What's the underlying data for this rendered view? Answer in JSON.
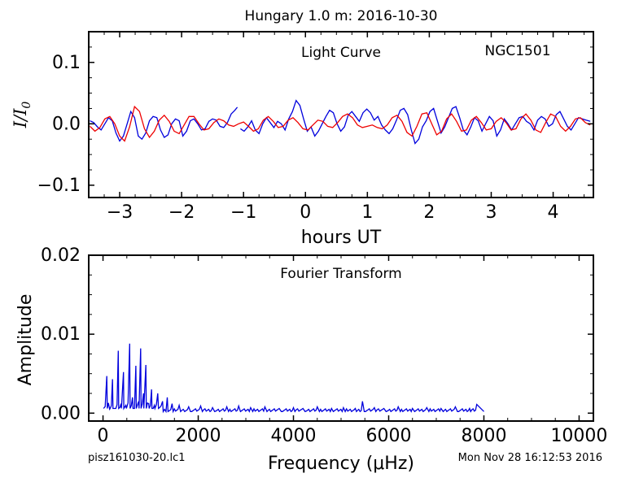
{
  "figure": {
    "suptitle": "Hungary 1.0 m:  2016-10-30",
    "footer_left": "pisz161030-20.lc1",
    "footer_right": "Mon Nov 28 16:12:53 2016"
  },
  "colors": {
    "data": "#0000dd",
    "model": "#ee0000",
    "axes": "#000000"
  },
  "chart_data": [
    {
      "type": "line",
      "panel": "light-curve",
      "title": "Light Curve",
      "annotation": "NGC1501",
      "xlabel": "hours UT",
      "ylabel": "I/I",
      "ylabel_sub": "0",
      "xlim": [
        -3.5,
        4.65
      ],
      "ylim": [
        -0.12,
        0.15
      ],
      "xticks": [
        -3,
        -2,
        -1,
        0,
        1,
        2,
        3,
        4
      ],
      "xticklabels": [
        "−3",
        "−2",
        "−1",
        "0",
        "1",
        "2",
        "3",
        "4"
      ],
      "yticks": [
        -0.1,
        0.0,
        0.1
      ],
      "yticklabels": [
        "−0.1",
        "0.0",
        "0.1"
      ],
      "grid": false,
      "series": [
        {
          "role": "data",
          "color": "#0000dd",
          "segments": [
            {
              "x": [
                -3.48,
                -3.42,
                -3.36,
                -3.3,
                -3.24,
                -3.18,
                -3.12,
                -3.06,
                -3.0,
                -2.94,
                -2.88,
                -2.82,
                -2.76,
                -2.7,
                -2.64,
                -2.58,
                -2.52,
                -2.46,
                -2.4,
                -2.34,
                -2.28,
                -2.22,
                -2.16,
                -2.1,
                -2.04,
                -1.98,
                -1.92,
                -1.86,
                -1.8,
                -1.74,
                -1.68,
                -1.62,
                -1.56,
                -1.5,
                -1.44,
                -1.38,
                -1.32,
                -1.26,
                -1.2,
                -1.14,
                -1.1
              ],
              "y": [
                0.005,
                0.002,
                -0.005,
                -0.01,
                0.0,
                0.01,
                0.005,
                -0.015,
                -0.028,
                -0.02,
                0.0,
                0.02,
                0.01,
                -0.02,
                -0.025,
                -0.015,
                0.005,
                0.012,
                0.01,
                -0.01,
                -0.022,
                -0.018,
                0.0,
                0.008,
                0.005,
                -0.02,
                -0.012,
                0.005,
                0.008,
                0.0,
                -0.01,
                -0.008,
                0.004,
                0.008,
                0.006,
                -0.004,
                -0.006,
                0.002,
                0.016,
                0.022,
                0.027
              ]
            },
            {
              "x": [
                -1.05,
                -0.99,
                -0.93,
                -0.87,
                -0.81,
                -0.75,
                -0.69,
                -0.63,
                -0.57,
                -0.51,
                -0.45,
                -0.39,
                -0.33,
                -0.27,
                -0.21,
                -0.15,
                -0.09,
                -0.03,
                0.03,
                0.09,
                0.15,
                0.21,
                0.27,
                0.33,
                0.39,
                0.45,
                0.51,
                0.57,
                0.63,
                0.69,
                0.75,
                0.81,
                0.87,
                0.93,
                0.99,
                1.05,
                1.11,
                1.17,
                1.23,
                1.29,
                1.35,
                1.41,
                1.47,
                1.53,
                1.59,
                1.65,
                1.71,
                1.77,
                1.83,
                1.89,
                1.95,
                2.01,
                2.07,
                2.13,
                2.19,
                2.25,
                2.31,
                2.37,
                2.43,
                2.49,
                2.55,
                2.61,
                2.67,
                2.73,
                2.79,
                2.85,
                2.91,
                2.97,
                3.03,
                3.09,
                3.15,
                3.21,
                3.27,
                3.33,
                3.39,
                3.45,
                3.51,
                3.57,
                3.63,
                3.69,
                3.75,
                3.81,
                3.87,
                3.93,
                3.99,
                4.05,
                4.11,
                4.17,
                4.23,
                4.29,
                4.35,
                4.41,
                4.47,
                4.53,
                4.6
              ],
              "y": [
                -0.008,
                -0.012,
                -0.005,
                0.005,
                -0.01,
                -0.016,
                0.0,
                0.01,
                0.002,
                -0.006,
                0.004,
                0.0,
                -0.01,
                0.008,
                0.02,
                0.038,
                0.03,
                0.008,
                -0.012,
                -0.005,
                -0.02,
                -0.012,
                0.0,
                0.012,
                0.022,
                0.018,
                0.0,
                -0.012,
                -0.005,
                0.014,
                0.02,
                0.012,
                0.004,
                0.018,
                0.024,
                0.018,
                0.006,
                0.012,
                -0.002,
                -0.01,
                -0.016,
                -0.008,
                0.006,
                0.022,
                0.025,
                0.015,
                -0.01,
                -0.032,
                -0.025,
                -0.005,
                0.005,
                0.02,
                0.025,
                0.005,
                -0.015,
                -0.005,
                0.01,
                0.025,
                0.028,
                0.01,
                -0.01,
                -0.018,
                -0.005,
                0.01,
                0.005,
                -0.012,
                0.0,
                0.012,
                0.005,
                -0.02,
                -0.01,
                0.008,
                0.0,
                -0.01,
                0.0,
                0.01,
                0.012,
                0.004,
                0.0,
                -0.01,
                0.006,
                0.012,
                0.008,
                -0.004,
                0.0,
                0.015,
                0.02,
                0.008,
                -0.004,
                -0.01,
                0.0,
                0.01,
                0.008,
                0.006,
                0.004
              ]
            }
          ]
        },
        {
          "role": "model",
          "color": "#ee0000",
          "x": [
            -3.48,
            -3.4,
            -3.32,
            -3.24,
            -3.16,
            -3.08,
            -3.0,
            -2.92,
            -2.84,
            -2.76,
            -2.68,
            -2.6,
            -2.52,
            -2.44,
            -2.36,
            -2.28,
            -2.2,
            -2.12,
            -2.04,
            -1.96,
            -1.88,
            -1.8,
            -1.72,
            -1.64,
            -1.56,
            -1.48,
            -1.4,
            -1.32,
            -1.24,
            -1.16,
            -1.08,
            -1.0,
            -0.92,
            -0.84,
            -0.76,
            -0.68,
            -0.6,
            -0.52,
            -0.44,
            -0.36,
            -0.28,
            -0.2,
            -0.12,
            -0.04,
            0.04,
            0.12,
            0.2,
            0.28,
            0.36,
            0.44,
            0.52,
            0.6,
            0.68,
            0.76,
            0.84,
            0.92,
            1.0,
            1.08,
            1.16,
            1.24,
            1.32,
            1.4,
            1.48,
            1.56,
            1.64,
            1.72,
            1.8,
            1.88,
            1.96,
            2.04,
            2.12,
            2.2,
            2.28,
            2.36,
            2.44,
            2.52,
            2.6,
            2.68,
            2.76,
            2.84,
            2.92,
            3.0,
            3.08,
            3.16,
            3.24,
            3.32,
            3.4,
            3.48,
            3.56,
            3.64,
            3.72,
            3.8,
            3.88,
            3.96,
            4.04,
            4.12,
            4.2,
            4.28,
            4.36,
            4.44,
            4.52,
            4.6
          ],
          "y": [
            -0.004,
            -0.012,
            -0.006,
            0.008,
            0.012,
            0.0,
            -0.02,
            -0.028,
            -0.005,
            0.028,
            0.02,
            -0.008,
            -0.022,
            -0.012,
            0.006,
            0.014,
            0.004,
            -0.012,
            -0.016,
            -0.002,
            0.012,
            0.012,
            0.0,
            -0.01,
            -0.008,
            0.002,
            0.008,
            0.005,
            -0.002,
            -0.004,
            0.0,
            0.003,
            -0.004,
            -0.012,
            -0.008,
            0.006,
            0.012,
            0.004,
            -0.006,
            -0.004,
            0.006,
            0.01,
            0.002,
            -0.008,
            -0.01,
            -0.002,
            0.006,
            0.004,
            -0.004,
            -0.006,
            0.002,
            0.012,
            0.016,
            0.01,
            -0.002,
            -0.006,
            -0.004,
            -0.002,
            -0.006,
            -0.008,
            -0.002,
            0.01,
            0.014,
            0.004,
            -0.014,
            -0.02,
            -0.004,
            0.016,
            0.018,
            0.0,
            -0.018,
            -0.012,
            0.008,
            0.016,
            0.004,
            -0.012,
            -0.01,
            0.006,
            0.012,
            0.002,
            -0.01,
            -0.008,
            0.004,
            0.01,
            0.002,
            -0.01,
            -0.008,
            0.008,
            0.016,
            0.006,
            -0.01,
            -0.014,
            0.002,
            0.016,
            0.012,
            -0.004,
            -0.012,
            -0.004,
            0.008,
            0.01,
            0.002,
            -0.002
          ]
        }
      ]
    },
    {
      "type": "line",
      "panel": "fourier-transform",
      "title": "Fourier Transform",
      "xlabel": "Frequency (μHz)",
      "ylabel": "Amplitude",
      "xlim": [
        -300,
        10300
      ],
      "ylim": [
        -0.001,
        0.02
      ],
      "xticks": [
        0,
        2000,
        4000,
        6000,
        8000,
        10000
      ],
      "xticklabels": [
        "0",
        "2000",
        "4000",
        "6000",
        "8000",
        "10000"
      ],
      "yticks": [
        0.0,
        0.01,
        0.02
      ],
      "yticklabels": [
        "0.00",
        "0.01",
        "0.02"
      ],
      "grid": false,
      "series": [
        {
          "role": "data",
          "color": "#0000dd",
          "peaks": [
            [
              80,
              0.0047
            ],
            [
              140,
              0.0005
            ],
            [
              200,
              0.0043
            ],
            [
              260,
              0.0006
            ],
            [
              320,
              0.0079
            ],
            [
              380,
              0.0012
            ],
            [
              430,
              0.0052
            ],
            [
              480,
              0.001
            ],
            [
              560,
              0.0088
            ],
            [
              620,
              0.002
            ],
            [
              690,
              0.006
            ],
            [
              750,
              0.0015
            ],
            [
              790,
              0.0082
            ],
            [
              850,
              0.0025
            ],
            [
              900,
              0.0061
            ],
            [
              960,
              0.0012
            ],
            [
              1020,
              0.003
            ],
            [
              1080,
              0.001
            ],
            [
              1150,
              0.0025
            ],
            [
              1250,
              0.0015
            ],
            [
              1350,
              0.002
            ],
            [
              1450,
              0.0012
            ],
            [
              1600,
              0.001
            ],
            [
              1800,
              0.0008
            ],
            [
              2050,
              0.0009
            ],
            [
              2300,
              0.0007
            ],
            [
              2600,
              0.0008
            ],
            [
              2850,
              0.0009
            ],
            [
              3100,
              0.0007
            ],
            [
              3400,
              0.0008
            ],
            [
              3700,
              0.0006
            ],
            [
              4000,
              0.0007
            ],
            [
              4200,
              0.0006
            ],
            [
              4500,
              0.0008
            ],
            [
              4800,
              0.0006
            ],
            [
              5050,
              0.0007
            ],
            [
              5300,
              0.0006
            ],
            [
              5450,
              0.0015
            ],
            [
              5700,
              0.0007
            ],
            [
              5900,
              0.0006
            ],
            [
              6200,
              0.0008
            ],
            [
              6500,
              0.0006
            ],
            [
              6800,
              0.0007
            ],
            [
              7100,
              0.0006
            ],
            [
              7400,
              0.0008
            ],
            [
              7700,
              0.0006
            ],
            [
              7850,
              0.0011
            ]
          ],
          "xmax": 8000
        }
      ]
    }
  ]
}
